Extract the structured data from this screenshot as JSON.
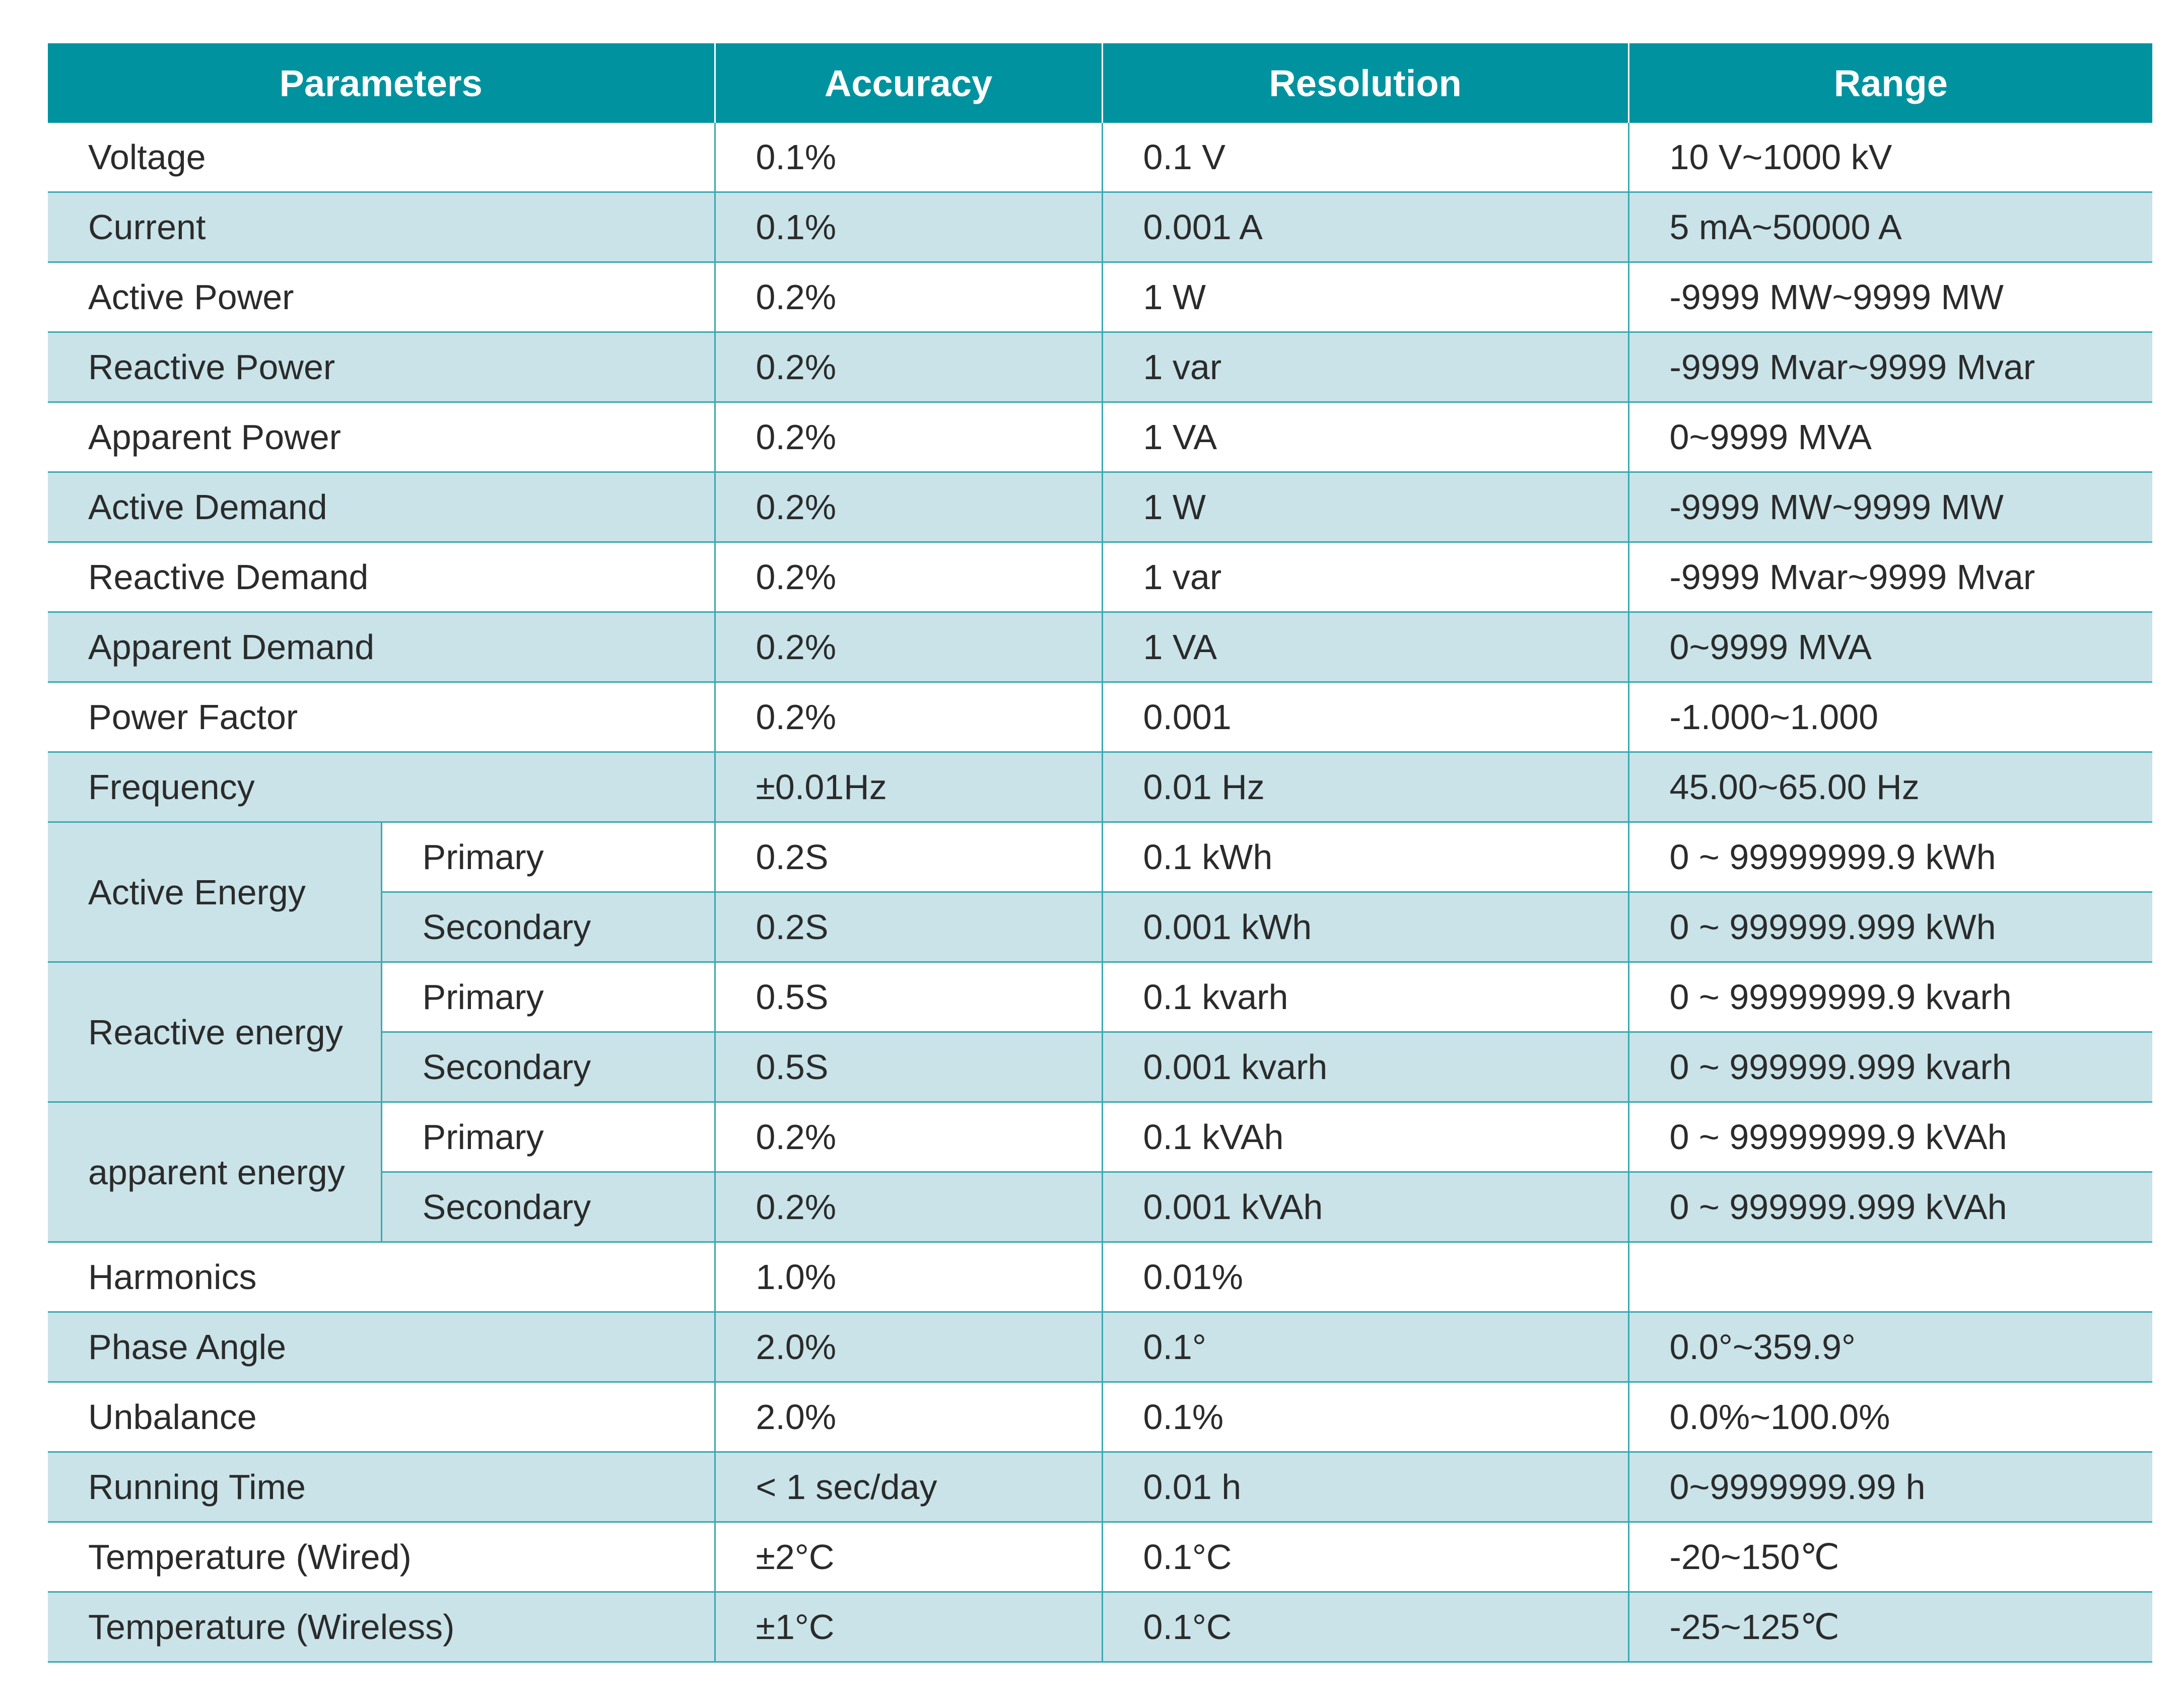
{
  "table": {
    "headers": [
      "Parameters",
      "Accuracy",
      "Resolution",
      "Range"
    ],
    "rows_top": [
      {
        "parameter": "Voltage",
        "accuracy": "0.1%",
        "resolution": "0.1 V",
        "range": "10 V~1000 kV"
      },
      {
        "parameter": "Current",
        "accuracy": "0.1%",
        "resolution": "0.001 A",
        "range": "5 mA~50000 A"
      },
      {
        "parameter": "Active Power",
        "accuracy": "0.2%",
        "resolution": "1 W",
        "range": "-9999 MW~9999 MW"
      },
      {
        "parameter": "Reactive Power",
        "accuracy": "0.2%",
        "resolution": "1 var",
        "range": "-9999 Mvar~9999 Mvar"
      },
      {
        "parameter": "Apparent Power",
        "accuracy": "0.2%",
        "resolution": "1 VA",
        "range": "0~9999 MVA"
      },
      {
        "parameter": "Active Demand",
        "accuracy": "0.2%",
        "resolution": "1 W",
        "range": "-9999 MW~9999 MW"
      },
      {
        "parameter": "Reactive Demand",
        "accuracy": "0.2%",
        "resolution": "1 var",
        "range": "-9999 Mvar~9999 Mvar"
      },
      {
        "parameter": "Apparent Demand",
        "accuracy": "0.2%",
        "resolution": "1 VA",
        "range": "0~9999 MVA"
      },
      {
        "parameter": "Power Factor",
        "accuracy": "0.2%",
        "resolution": "0.001",
        "range": "-1.000~1.000"
      },
      {
        "parameter": "Frequency",
        "accuracy": "±0.01Hz",
        "resolution": "0.01 Hz",
        "range": "45.00~65.00 Hz"
      }
    ],
    "energy_groups": [
      {
        "group": "Active Energy",
        "rows": [
          {
            "sub": "Primary",
            "accuracy": "0.2S",
            "resolution": "0.1 kWh",
            "range": "0 ~ 99999999.9 kWh"
          },
          {
            "sub": "Secondary",
            "accuracy": "0.2S",
            "resolution": "0.001 kWh",
            "range": "0 ~ 999999.999 kWh"
          }
        ]
      },
      {
        "group": "Reactive energy",
        "rows": [
          {
            "sub": "Primary",
            "accuracy": "0.5S",
            "resolution": "0.1 kvarh",
            "range": "0 ~ 99999999.9 kvarh"
          },
          {
            "sub": "Secondary",
            "accuracy": "0.5S",
            "resolution": "0.001 kvarh",
            "range": "0 ~ 999999.999 kvarh"
          }
        ]
      },
      {
        "group": "apparent energy",
        "rows": [
          {
            "sub": "Primary",
            "accuracy": "0.2%",
            "resolution": "0.1 kVAh",
            "range": "0 ~ 99999999.9 kVAh"
          },
          {
            "sub": "Secondary",
            "accuracy": "0.2%",
            "resolution": "0.001 kVAh",
            "range": "0 ~ 999999.999 kVAh"
          }
        ]
      }
    ],
    "rows_bottom": [
      {
        "parameter": "Harmonics",
        "accuracy": "1.0%",
        "resolution": "0.01%",
        "range": ""
      },
      {
        "parameter": "Phase Angle",
        "accuracy": "2.0%",
        "resolution": "0.1°",
        "range": "0.0°~359.9°"
      },
      {
        "parameter": "Unbalance",
        "accuracy": "2.0%",
        "resolution": "0.1%",
        "range": "0.0%~100.0%"
      },
      {
        "parameter": "Running Time",
        "accuracy": "< 1 sec/day",
        "resolution": "0.01 h",
        "range": "0~9999999.99 h"
      },
      {
        "parameter": "Temperature (Wired)",
        "accuracy": "±2°C",
        "resolution": "0.1°C",
        "range": "-20~150℃"
      },
      {
        "parameter": "Temperature (Wireless)",
        "accuracy": "±1°C",
        "resolution": "0.1°C",
        "range": "-25~125℃"
      }
    ],
    "colors": {
      "header_bg": "#00939f",
      "header_text": "#ffffff",
      "row_shade": "#c9e3e8",
      "rule": "#3aa9b2"
    }
  }
}
